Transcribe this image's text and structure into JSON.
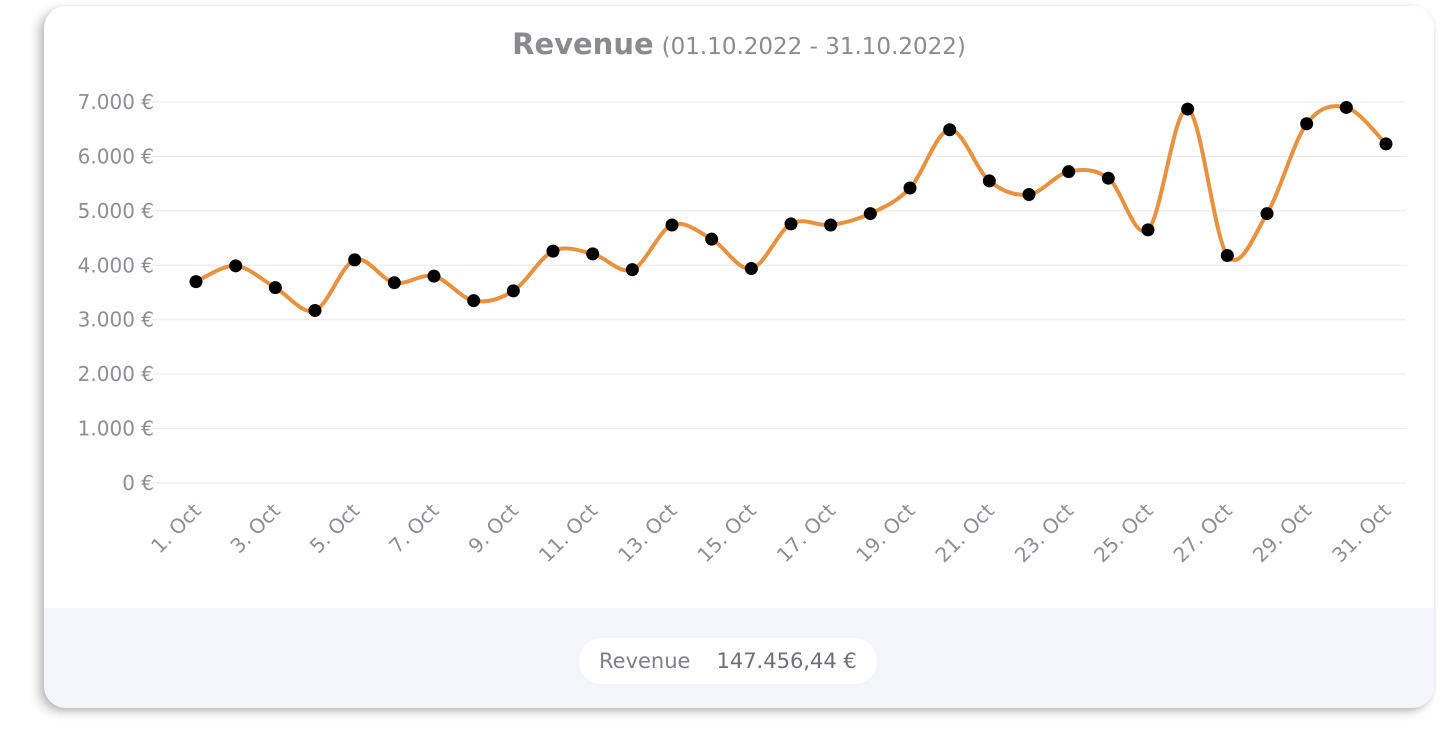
{
  "chart_data": {
    "type": "line",
    "title": "Revenue",
    "subtitle": "(01.10.2022 - 31.10.2022)",
    "x": [
      "1. Oct",
      "2. Oct",
      "3. Oct",
      "4. Oct",
      "5. Oct",
      "6. Oct",
      "7. Oct",
      "8. Oct",
      "9. Oct",
      "10. Oct",
      "11. Oct",
      "12. Oct",
      "13. Oct",
      "14. Oct",
      "15. Oct",
      "16. Oct",
      "17. Oct",
      "18. Oct",
      "19. Oct",
      "20. Oct",
      "21. Oct",
      "22. Oct",
      "23. Oct",
      "24. Oct",
      "25. Oct",
      "26. Oct",
      "27. Oct",
      "28. Oct",
      "29. Oct",
      "30. Oct",
      "31. Oct"
    ],
    "x_tick_labels": [
      "1. Oct",
      "3. Oct",
      "5. Oct",
      "7. Oct",
      "9. Oct",
      "11. Oct",
      "13. Oct",
      "15. Oct",
      "17. Oct",
      "19. Oct",
      "21. Oct",
      "23. Oct",
      "25. Oct",
      "27. Oct",
      "29. Oct",
      "31. Oct"
    ],
    "series": [
      {
        "values": [
          3700,
          3990,
          3590,
          3170,
          4100,
          3680,
          3800,
          3350,
          3530,
          4260,
          4210,
          3920,
          4740,
          4480,
          3940,
          4760,
          4740,
          4950,
          5420,
          6490,
          5550,
          5300,
          5720,
          5600,
          4650,
          6870,
          4180,
          4950,
          6600,
          6900,
          6230
        ],
        "color": "#e8913f",
        "marker_color": "#000000"
      }
    ],
    "y_tick_labels": [
      "0 €",
      "1.000 €",
      "2.000 €",
      "3.000 €",
      "4.000 €",
      "5.000 €",
      "6.000 €",
      "7.000 €"
    ],
    "ylim": [
      0,
      7000
    ],
    "grid": true,
    "smooth": true
  },
  "footer": {
    "label": "Revenue",
    "total": "147.456,44 €"
  }
}
